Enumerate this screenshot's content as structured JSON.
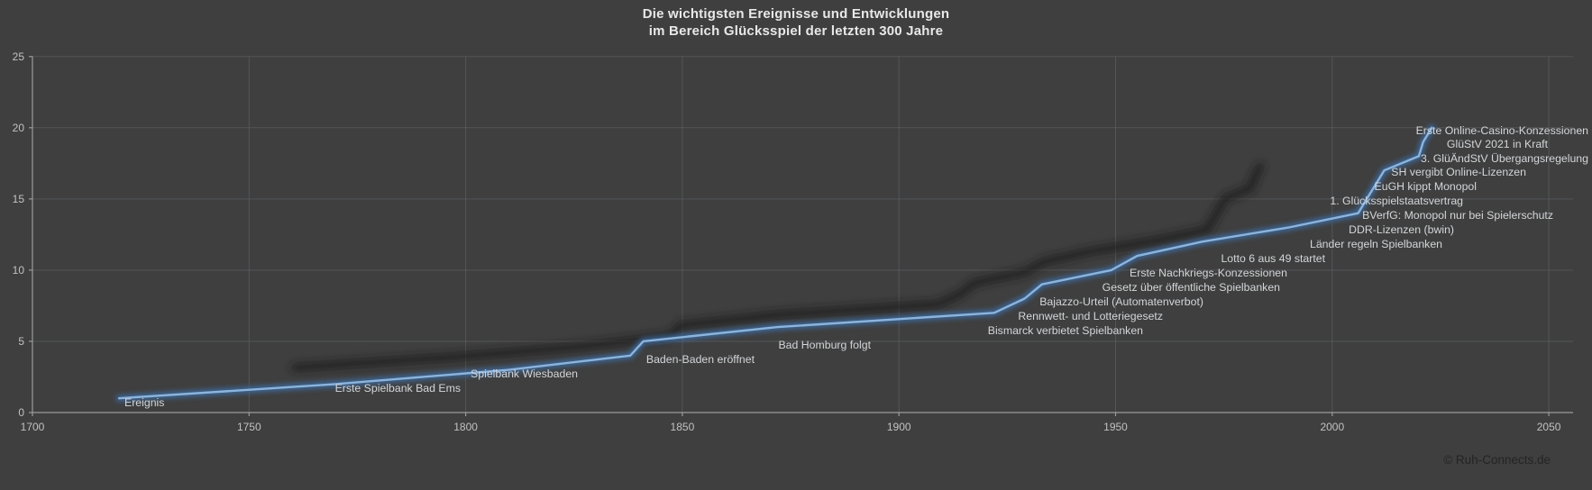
{
  "title": {
    "line1": "Die wichtigsten Ereignisse und Entwicklungen",
    "line2": "im Bereich Glücksspiel der letzten 300 Jahre"
  },
  "watermark": "© Ruh-Connects.de",
  "colors": {
    "background": "#3f3f3f",
    "grid": "#5a5d5f",
    "axis": "#9b9b9b",
    "tick_text": "#c1c1c1",
    "title_text": "#e8e8e8",
    "label_text": "#d3d6d9",
    "line_core": "#8cb4dc",
    "line_glow": "#3e6b9e",
    "shadow": "#1a1a1a",
    "watermark_text": "#242424"
  },
  "chart_data": {
    "type": "line",
    "title": "Die wichtigsten Ereignisse und Entwicklungen im Bereich Glücksspiel der letzten 300 Jahre",
    "series_name": "Ereignis",
    "xlabel": "",
    "ylabel": "",
    "xlim": [
      1700,
      2050
    ],
    "ylim": [
      0,
      25
    ],
    "x_ticks": [
      1700,
      1750,
      1800,
      1850,
      1900,
      1950,
      2000,
      2050
    ],
    "y_ticks": [
      0,
      5,
      10,
      15,
      20,
      25
    ],
    "grid": true,
    "legend_position": "none",
    "events": [
      {
        "year": 1720,
        "value": 1,
        "label": "Ereignis"
      },
      {
        "year": 1770,
        "value": 2,
        "label": "Erste Spielbank Bad Ems"
      },
      {
        "year": 1810,
        "value": 3,
        "label": "Spielbank Wiesbaden"
      },
      {
        "year": 1838,
        "value": 4,
        "label": "Baden-Baden eröffnet"
      },
      {
        "year": 1841,
        "value": 5,
        "label": "Bad Homburg folgt"
      },
      {
        "year": 1872,
        "value": 6,
        "label": "Bismarck verbietet Spielbanken"
      },
      {
        "year": 1922,
        "value": 7,
        "label": "Rennwett- und Lotteriegesetz"
      },
      {
        "year": 1929,
        "value": 8,
        "label": "Bajazzo-Urteil (Automatenverbot)"
      },
      {
        "year": 1933,
        "value": 9,
        "label": "Gesetz über öffentliche Spielbanken"
      },
      {
        "year": 1949,
        "value": 10,
        "label": "Erste Nachkriegs-Konzessionen"
      },
      {
        "year": 1955,
        "value": 11,
        "label": "Lotto 6 aus 49 startet"
      },
      {
        "year": 1970,
        "value": 12,
        "label": "Länder regeln Spielbanken"
      },
      {
        "year": 1990,
        "value": 13,
        "label": "DDR-Lizenzen (bwin)"
      },
      {
        "year": 2006,
        "value": 14,
        "label": "BVerfG: Monopol nur bei Spielerschutz"
      },
      {
        "year": 2008,
        "value": 15,
        "label": "1. Glücksspielstaatsvertrag"
      },
      {
        "year": 2010,
        "value": 16,
        "label": "EuGH kippt Monopol"
      },
      {
        "year": 2012,
        "value": 17,
        "label": "SH vergibt Online-Lizenzen"
      },
      {
        "year": 2020,
        "value": 18,
        "label": "3. GlüÄndStV Übergangsregelung"
      },
      {
        "year": 2021,
        "value": 19,
        "label": "GlüStV 2021 in Kraft"
      },
      {
        "year": 2023,
        "value": 20,
        "label": "Erste Online-Casino-Konzessionen"
      }
    ]
  }
}
